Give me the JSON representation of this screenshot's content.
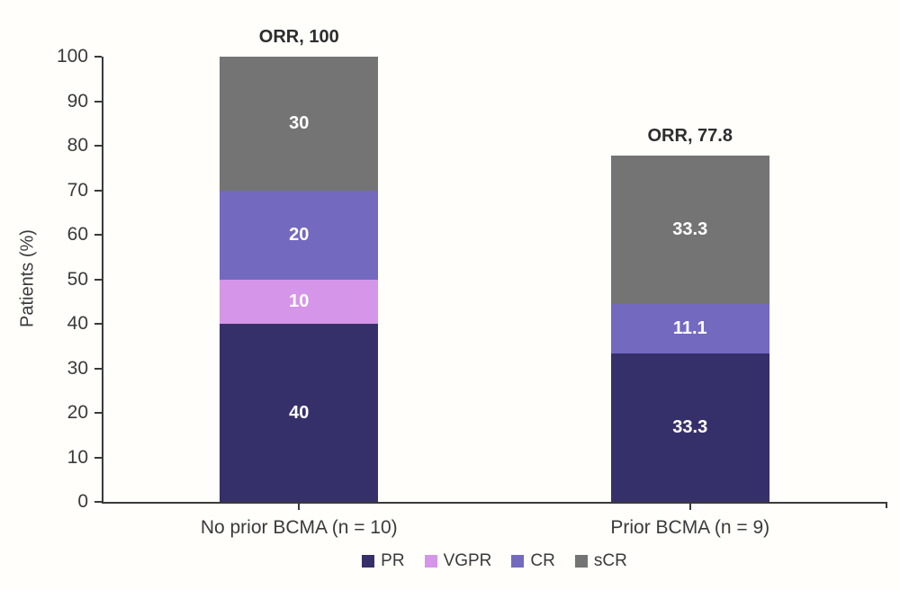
{
  "chart_data": {
    "type": "bar",
    "stacked": true,
    "title": "",
    "ylabel": "Patients (%)",
    "xlabel": "",
    "ylim": [
      0,
      100
    ],
    "yticks": [
      0,
      10,
      20,
      30,
      40,
      50,
      60,
      70,
      80,
      90,
      100
    ],
    "grid": false,
    "legend_position": "bottom",
    "categories": [
      "No prior BCMA (n = 10)",
      "Prior BCMA (n = 9)"
    ],
    "series": [
      {
        "name": "PR",
        "color": "#36306a",
        "values": [
          40,
          33.3
        ]
      },
      {
        "name": "VGPR",
        "color": "#d595e8",
        "values": [
          10,
          0
        ]
      },
      {
        "name": "CR",
        "color": "#7369bf",
        "values": [
          20,
          11.1
        ]
      },
      {
        "name": "sCR",
        "color": "#757475",
        "values": [
          30,
          33.3
        ]
      }
    ],
    "segment_labels": [
      [
        "40",
        "10",
        "20",
        "30"
      ],
      [
        "33.3",
        "",
        "11.1",
        "33.3"
      ]
    ],
    "bar_annotations": [
      "ORR, 100",
      "ORR, 77.8"
    ]
  },
  "colors": {
    "axis": "#3a3a3a",
    "background": "#fffefa",
    "bar_value_text": "#ffffff",
    "annotation_text": "#2d2d2d"
  }
}
